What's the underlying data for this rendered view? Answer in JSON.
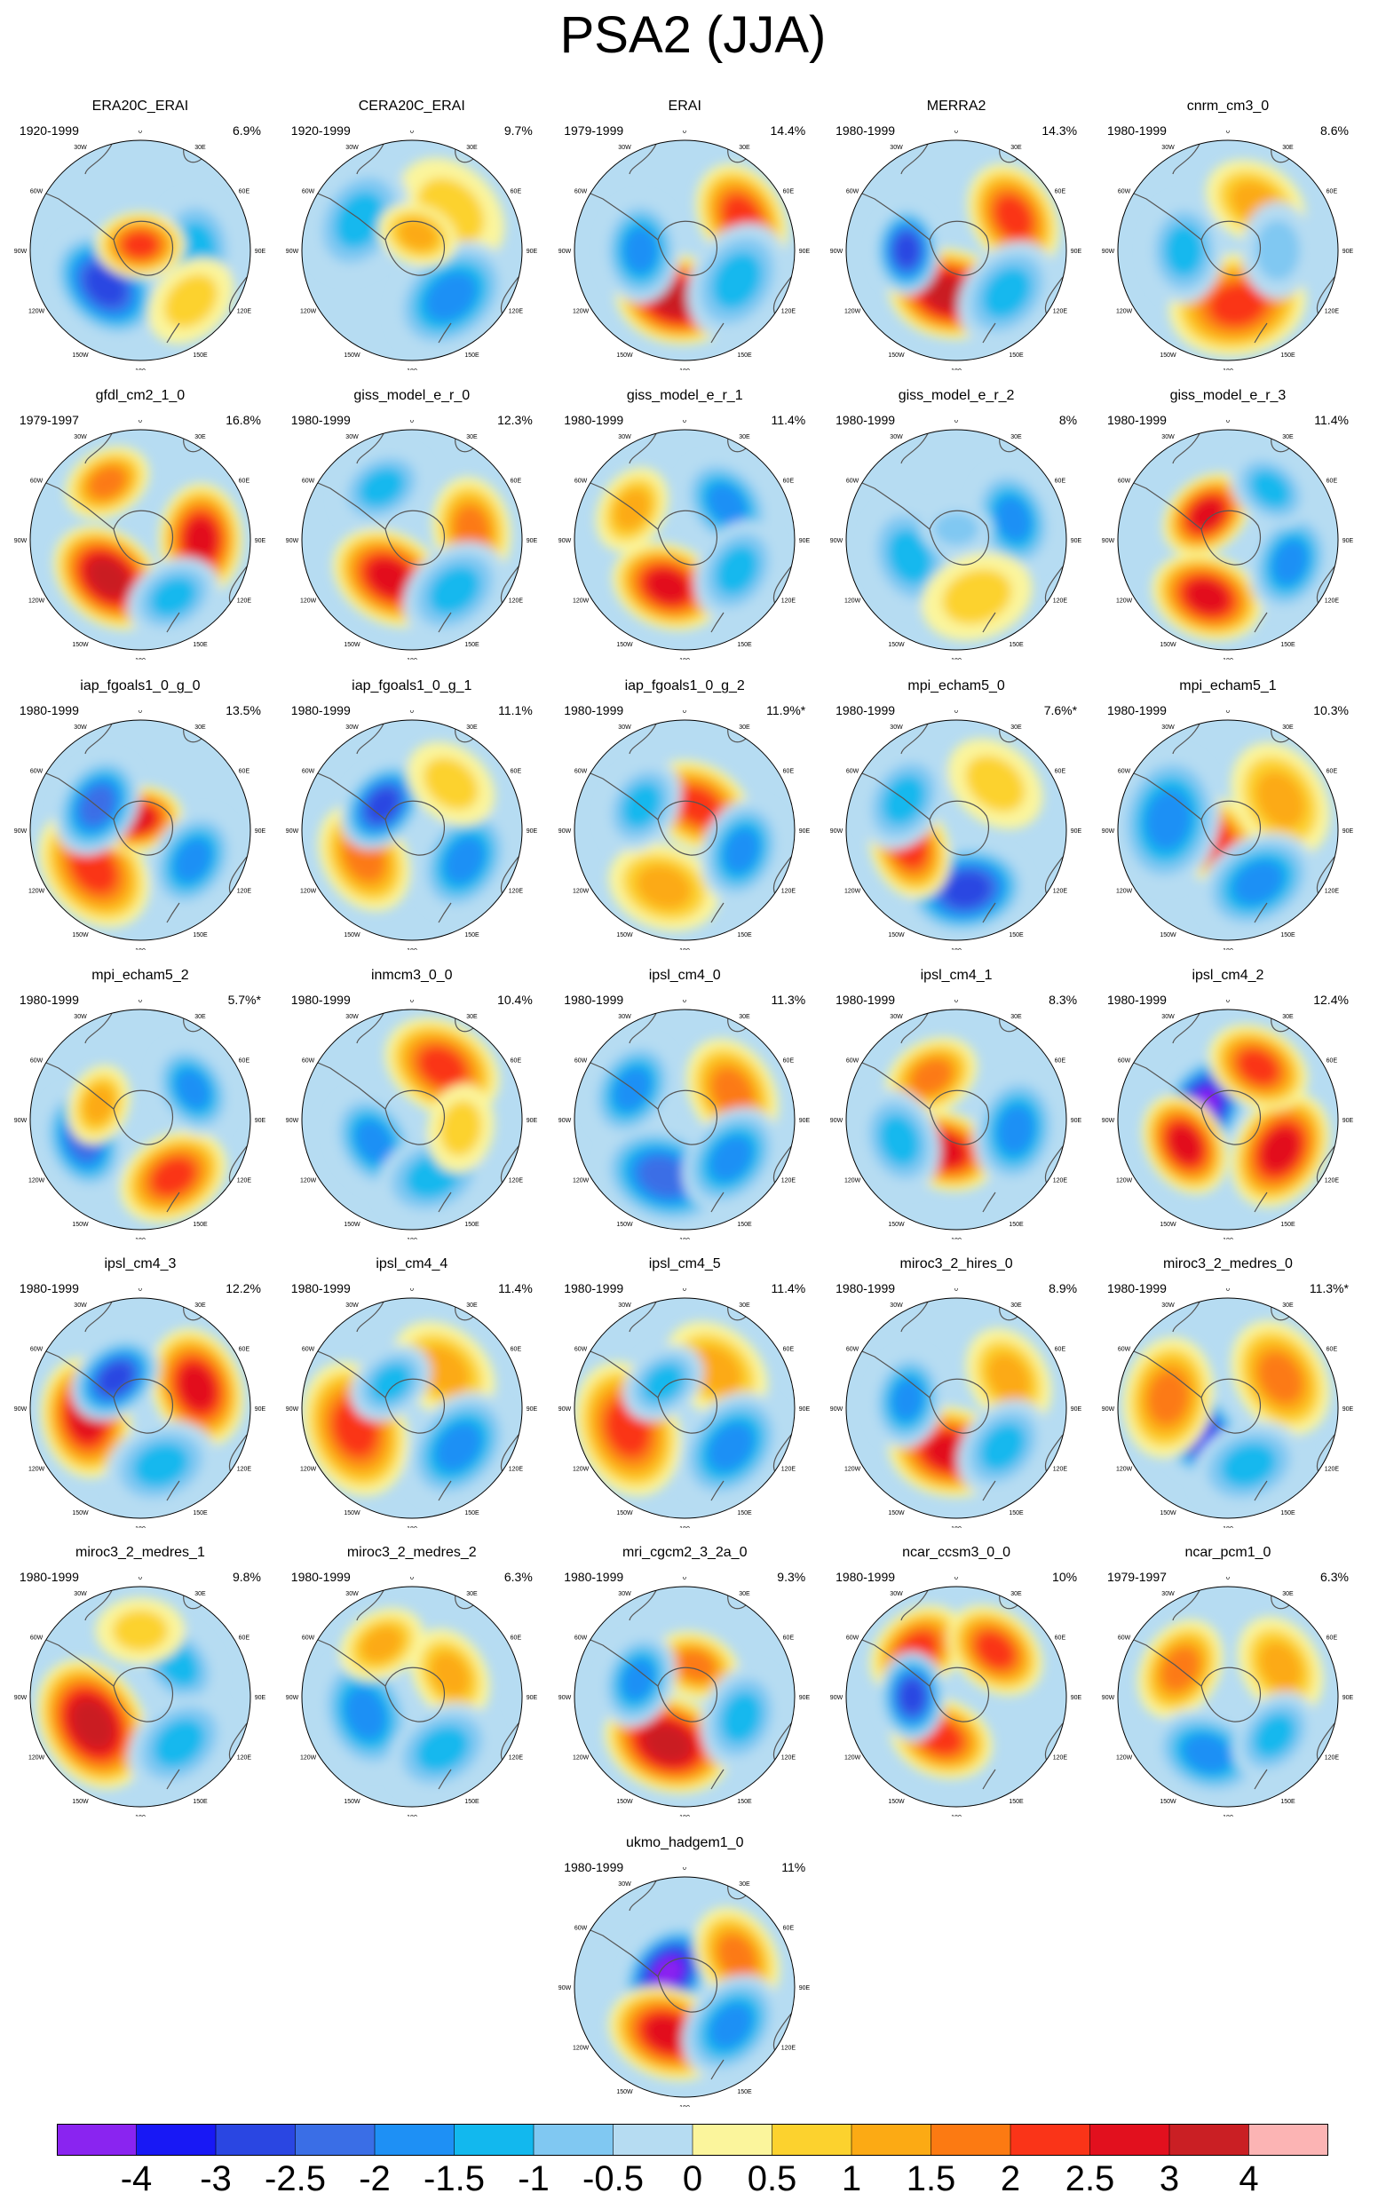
{
  "title": "PSA2 (JJA)",
  "map": {
    "lon_labels": [
      "0",
      "30E",
      "60E",
      "90E",
      "120E",
      "150E",
      "180",
      "150W",
      "120W",
      "90W",
      "60W",
      "30W"
    ]
  },
  "panels": [
    {
      "name": "ERA20C_ERAI",
      "period": "1920-1999",
      "variance": "6.9%"
    },
    {
      "name": "CERA20C_ERAI",
      "period": "1920-1999",
      "variance": "9.7%"
    },
    {
      "name": "ERAI",
      "period": "1979-1999",
      "variance": "14.4%"
    },
    {
      "name": "MERRA2",
      "period": "1980-1999",
      "variance": "14.3%"
    },
    {
      "name": "cnrm_cm3_0",
      "period": "1980-1999",
      "variance": "8.6%"
    },
    {
      "name": "gfdl_cm2_1_0",
      "period": "1979-1997",
      "variance": "16.8%"
    },
    {
      "name": "giss_model_e_r_0",
      "period": "1980-1999",
      "variance": "12.3%"
    },
    {
      "name": "giss_model_e_r_1",
      "period": "1980-1999",
      "variance": "11.4%"
    },
    {
      "name": "giss_model_e_r_2",
      "period": "1980-1999",
      "variance": "8%"
    },
    {
      "name": "giss_model_e_r_3",
      "period": "1980-1999",
      "variance": "11.4%"
    },
    {
      "name": "iap_fgoals1_0_g_0",
      "period": "1980-1999",
      "variance": "13.5%"
    },
    {
      "name": "iap_fgoals1_0_g_1",
      "period": "1980-1999",
      "variance": "11.1%"
    },
    {
      "name": "iap_fgoals1_0_g_2",
      "period": "1980-1999",
      "variance": "11.9%*"
    },
    {
      "name": "mpi_echam5_0",
      "period": "1980-1999",
      "variance": "7.6%*"
    },
    {
      "name": "mpi_echam5_1",
      "period": "1980-1999",
      "variance": "10.3%"
    },
    {
      "name": "mpi_echam5_2",
      "period": "1980-1999",
      "variance": "5.7%*"
    },
    {
      "name": "inmcm3_0_0",
      "period": "1980-1999",
      "variance": "10.4%"
    },
    {
      "name": "ipsl_cm4_0",
      "period": "1980-1999",
      "variance": "11.3%"
    },
    {
      "name": "ipsl_cm4_1",
      "period": "1980-1999",
      "variance": "8.3%"
    },
    {
      "name": "ipsl_cm4_2",
      "period": "1980-1999",
      "variance": "12.4%"
    },
    {
      "name": "ipsl_cm4_3",
      "period": "1980-1999",
      "variance": "12.2%"
    },
    {
      "name": "ipsl_cm4_4",
      "period": "1980-1999",
      "variance": "11.4%"
    },
    {
      "name": "ipsl_cm4_5",
      "period": "1980-1999",
      "variance": "11.4%"
    },
    {
      "name": "miroc3_2_hires_0",
      "period": "1980-1999",
      "variance": "8.9%"
    },
    {
      "name": "miroc3_2_medres_0",
      "period": "1980-1999",
      "variance": "11.3%*"
    },
    {
      "name": "miroc3_2_medres_1",
      "period": "1980-1999",
      "variance": "9.8%"
    },
    {
      "name": "miroc3_2_medres_2",
      "period": "1980-1999",
      "variance": "6.3%"
    },
    {
      "name": "mri_cgcm2_3_2a_0",
      "period": "1980-1999",
      "variance": "9.3%"
    },
    {
      "name": "ncar_ccsm3_0_0",
      "period": "1980-1999",
      "variance": "10%"
    },
    {
      "name": "ncar_pcm1_0",
      "period": "1979-1997",
      "variance": "6.3%"
    },
    {
      "name": "ukmo_hadgem1_0",
      "period": "1980-1999",
      "variance": "11%"
    }
  ],
  "colorbar": {
    "colors": [
      "#8a24f0",
      "#1818f5",
      "#2a46e2",
      "#3a6ee6",
      "#1e90f5",
      "#12b8ee",
      "#80c8f2",
      "#b6dcf2",
      "#fbf59c",
      "#fcd22e",
      "#fcaa14",
      "#fc7a12",
      "#fa3418",
      "#e2101e",
      "#ca1f24",
      "#fcb4b4"
    ],
    "labels": [
      "-4",
      "-3",
      "-2.5",
      "-2",
      "-1.5",
      "-1",
      "-0.5",
      "0",
      "0.5",
      "1",
      "1.5",
      "2",
      "2.5",
      "3",
      "4"
    ]
  }
}
